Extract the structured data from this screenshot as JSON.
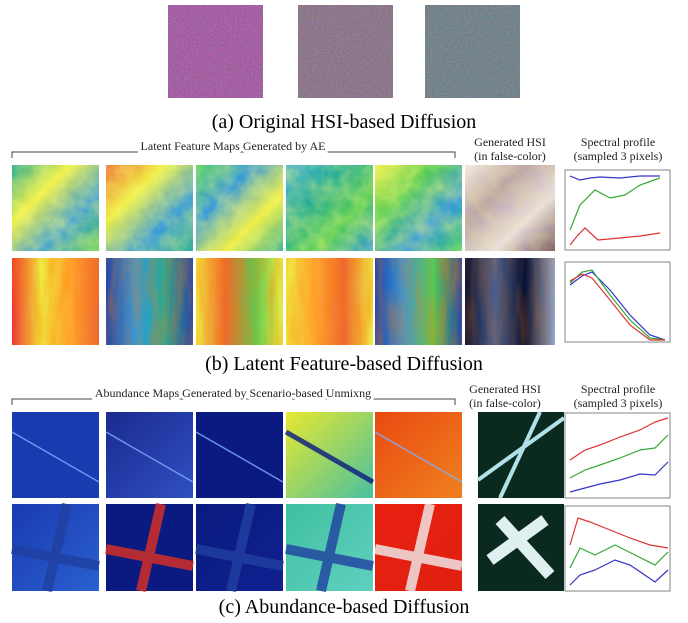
{
  "section_a": {
    "caption": "(a) Original HSI-based Diffusion"
  },
  "section_b": {
    "group_label": "Latent Feature Maps Generated by AE",
    "hsi_label": [
      "Generated HSI",
      "(in false-color)"
    ],
    "profile_label": [
      "Spectral profile",
      "(sampled 3 pixels)"
    ],
    "caption": "(b) Latent Feature-based Diffusion"
  },
  "section_c": {
    "group_label": "Abundance Maps Generated by Scenario-based Unmixng",
    "hsi_label": [
      "Generated HSI",
      "(in false-color)"
    ],
    "profile_label": [
      "Spectral profile",
      "(sampled 3 pixels)"
    ],
    "caption": "(c) Abundance-based Diffusion"
  }
}
